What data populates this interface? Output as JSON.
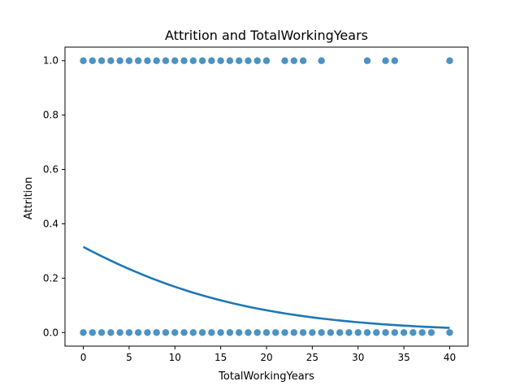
{
  "chart_data": {
    "type": "scatter",
    "title": "Attrition and TotalWorkingYears",
    "xlabel": "TotalWorkingYears",
    "ylabel": "Attrition",
    "xlim": [
      -2,
      42
    ],
    "ylim": [
      -0.05,
      1.05
    ],
    "xticks": [
      0,
      5,
      10,
      15,
      20,
      25,
      30,
      35,
      40
    ],
    "yticks": [
      0.0,
      0.2,
      0.4,
      0.6,
      0.8,
      1.0
    ],
    "ytick_labels": [
      "0.0",
      "0.2",
      "0.4",
      "0.6",
      "0.8",
      "1.0"
    ],
    "grid": false,
    "colors": {
      "points": "#1f77b4",
      "line": "#1f77b4"
    },
    "series": [
      {
        "kind": "points",
        "x_at_1": [
          0,
          1,
          2,
          3,
          4,
          5,
          6,
          7,
          8,
          9,
          10,
          11,
          12,
          13,
          14,
          15,
          16,
          17,
          18,
          19,
          20,
          22,
          23,
          24,
          26,
          31,
          33,
          34,
          40
        ],
        "x_at_0": [
          0,
          1,
          2,
          3,
          4,
          5,
          6,
          7,
          8,
          9,
          10,
          11,
          12,
          13,
          14,
          15,
          16,
          17,
          18,
          19,
          20,
          21,
          22,
          23,
          24,
          25,
          26,
          27,
          28,
          29,
          30,
          31,
          32,
          33,
          34,
          35,
          36,
          37,
          38,
          40
        ]
      },
      {
        "kind": "logistic-fit",
        "x": [
          0,
          5,
          10,
          15,
          20,
          25,
          30,
          35,
          40
        ],
        "y": [
          0.315,
          0.235,
          0.172,
          0.122,
          0.086,
          0.059,
          0.04,
          0.027,
          0.017
        ]
      }
    ]
  }
}
